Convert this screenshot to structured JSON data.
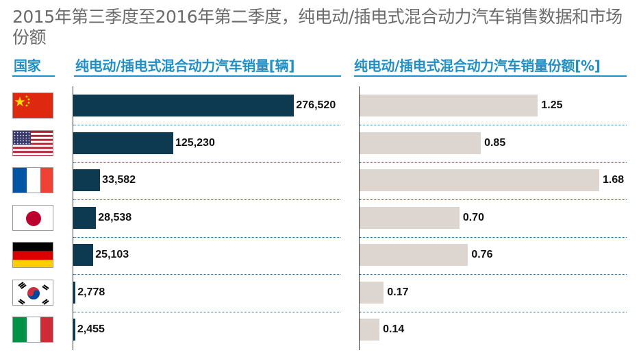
{
  "title": "2015年第三季度至2016年第二季度，纯电动/插电式混合动力汽车销售数据和市场份额",
  "headers": {
    "country": "国家",
    "volume": "纯电动/插电式混合动力汽车销量[辆]",
    "share": "纯电动/插电式混合动力汽车销量份额[%]"
  },
  "colors": {
    "accent": "#1f8fc6",
    "volume_bar": "#0d3a50",
    "share_bar": "#ddd5cf"
  },
  "flags": [
    "china-flag",
    "usa-flag",
    "france-flag",
    "japan-flag",
    "germany-flag",
    "korea-flag",
    "italy-flag"
  ],
  "chart_data": [
    {
      "type": "bar",
      "orientation": "horizontal",
      "categories": [
        "china",
        "usa",
        "france",
        "japan",
        "germany",
        "korea",
        "italy"
      ],
      "values": [
        276520,
        125230,
        33582,
        28538,
        25103,
        2778,
        2455
      ],
      "labels": [
        "276,520",
        "125,230",
        "33,582",
        "28,538",
        "25,103",
        "2,778",
        "2,455"
      ],
      "axis_break": true,
      "ylabel": "纯电动/插电式混合动力汽车销量[辆]"
    },
    {
      "type": "bar",
      "orientation": "horizontal",
      "categories": [
        "china",
        "usa",
        "france",
        "japan",
        "germany",
        "korea",
        "italy"
      ],
      "values": [
        1.25,
        0.85,
        1.68,
        0.7,
        0.76,
        0.17,
        0.14
      ],
      "labels": [
        "1.25",
        "0.85",
        "1.68",
        "0.70",
        "0.76",
        "0.17",
        "0.14"
      ],
      "xlim": [
        0,
        1.68
      ],
      "ylabel": "纯电动/插电式混合动力汽车销量份额[%]"
    }
  ]
}
